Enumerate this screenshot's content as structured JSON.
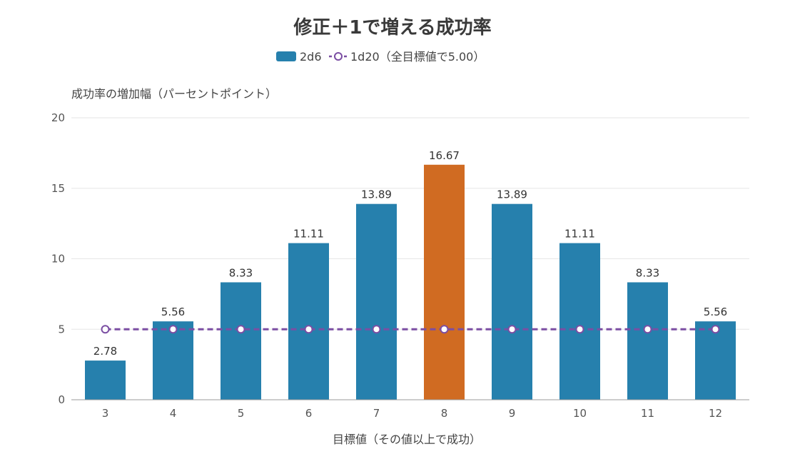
{
  "chart_data": {
    "type": "bar",
    "title": "修正＋1で増える成功率",
    "xlabel": "目標値（その値以上で成功）",
    "ylabel": "成功率の増加幅（パーセントポイント）",
    "categories": [
      "3",
      "4",
      "5",
      "6",
      "7",
      "8",
      "9",
      "10",
      "11",
      "12"
    ],
    "ylim": [
      0,
      20
    ],
    "yticks": [
      "0",
      "5",
      "10",
      "15",
      "20"
    ],
    "grid": true,
    "legend_position": "top-center",
    "series": [
      {
        "name": "2d6",
        "type": "bar",
        "values": [
          2.78,
          5.56,
          8.33,
          11.11,
          13.89,
          16.67,
          13.89,
          11.11,
          8.33,
          5.56
        ],
        "labels": [
          "2.78",
          "5.56",
          "8.33",
          "11.11",
          "13.89",
          "16.67",
          "13.89",
          "11.11",
          "8.33",
          "5.56"
        ],
        "color": "#2680ad",
        "highlight_color": "#d06b22",
        "highlight_category": "8"
      },
      {
        "name": "1d20（全目標値で5.00）",
        "type": "line",
        "style": "dashed",
        "marker": "hollow-circle",
        "values": [
          5,
          5,
          5,
          5,
          5,
          5,
          5,
          5,
          5,
          5
        ],
        "color": "#7b4ea3"
      }
    ]
  }
}
